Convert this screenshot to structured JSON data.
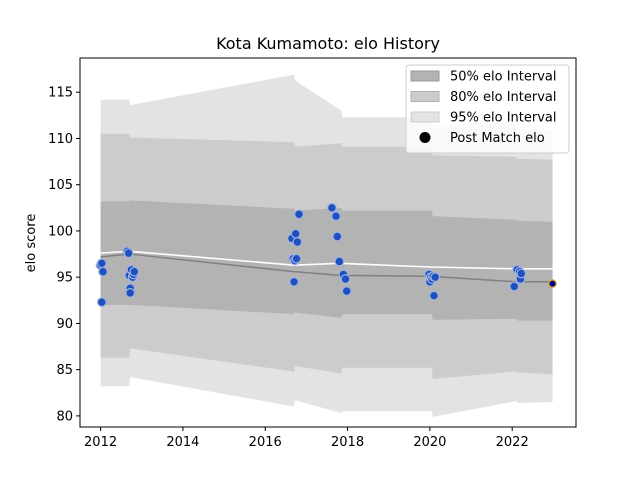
{
  "chart_data": {
    "type": "line",
    "title": "Kota Kumamoto: elo History",
    "xlabel": "",
    "ylabel": "elo score",
    "xlim": [
      2011.5,
      2023.55
    ],
    "ylim": [
      78.8,
      118.7
    ],
    "xticks": [
      2012,
      2014,
      2016,
      2018,
      2020,
      2022
    ],
    "yticks": [
      80,
      85,
      90,
      95,
      100,
      105,
      110,
      115
    ],
    "grid": false,
    "legend_position": "top-right",
    "legend": [
      {
        "label": "50% elo Interval",
        "kind": "band-50"
      },
      {
        "label": "80% elo Interval",
        "kind": "band-80"
      },
      {
        "label": "95% elo Interval",
        "kind": "band-95"
      },
      {
        "label": "Post Match elo",
        "kind": "marker"
      }
    ],
    "colors": {
      "band_50": "#b3b3b3",
      "band_80": "#cccccc",
      "band_95": "#e3e3e3",
      "mean_line": "#808080",
      "white_line": "#ffffff",
      "points": "#2050c0",
      "point_edge": "#9db3e0",
      "final_point": "#0000a0",
      "final_edge": "#d4a017"
    },
    "intervals": {
      "x": [
        2012.0,
        2012.7,
        2012.72,
        2016.7,
        2016.72,
        2017.85,
        2017.87,
        2020.05,
        2020.07,
        2022.1,
        2022.12,
        2022.98
      ],
      "upper95": [
        114.2,
        114.2,
        113.6,
        116.9,
        116.3,
        113.0,
        112.3,
        112.3,
        111.4,
        111.8,
        111.0,
        110.9
      ],
      "upper80": [
        110.5,
        110.5,
        110.1,
        109.6,
        109.1,
        109.5,
        109.1,
        109.1,
        108.2,
        108.0,
        107.8,
        107.7
      ],
      "upper50": [
        103.2,
        103.2,
        103.3,
        102.4,
        102.2,
        102.5,
        102.2,
        102.2,
        101.6,
        101.2,
        101.1,
        101.0
      ],
      "lower50": [
        92.0,
        92.0,
        92.0,
        91.0,
        91.2,
        90.6,
        91.0,
        91.0,
        90.4,
        90.5,
        90.3,
        90.3
      ],
      "lower80": [
        86.3,
        86.3,
        87.3,
        84.8,
        85.4,
        84.6,
        85.2,
        85.2,
        84.0,
        84.8,
        84.7,
        84.5
      ],
      "lower95": [
        83.2,
        83.2,
        84.2,
        81.0,
        81.7,
        80.3,
        80.5,
        80.5,
        79.9,
        81.6,
        81.4,
        81.5
      ]
    },
    "series": [
      {
        "x": [
          2012.0,
          2012.7,
          2016.7,
          2017.8,
          2020.0,
          2022.1,
          2022.98
        ],
        "y": [
          97.2,
          97.5,
          95.6,
          95.2,
          95.1,
          94.5,
          94.5
        ],
        "style": "mean-line"
      },
      {
        "x": [
          2012.0,
          2012.7,
          2016.7,
          2017.8,
          2020.0,
          2022.1,
          2022.98
        ],
        "y": [
          97.6,
          97.8,
          96.3,
          96.5,
          96.1,
          95.9,
          95.9
        ],
        "style": "white-line"
      },
      {
        "name": "Post Match elo",
        "style": "points",
        "x": [
          2012.0,
          2012.03,
          2012.06,
          2012.03,
          2012.65,
          2012.68,
          2012.7,
          2012.72,
          2012.72,
          2012.75,
          2012.78,
          2012.8,
          2012.82,
          2016.65,
          2016.68,
          2016.7,
          2016.72,
          2016.74,
          2016.76,
          2016.78,
          2016.82,
          2017.62,
          2017.72,
          2017.75,
          2017.8,
          2017.9,
          2017.95,
          2017.98,
          2019.98,
          2020.0,
          2020.02,
          2020.05,
          2020.08,
          2020.1,
          2020.13,
          2022.05,
          2022.12,
          2022.18,
          2022.2,
          2022.22
        ],
        "y": [
          96.3,
          96.5,
          95.6,
          92.3,
          97.8,
          97.6,
          95.2,
          93.8,
          93.3,
          95.8,
          95.0,
          95.3,
          95.6,
          99.2,
          97.0,
          94.5,
          96.8,
          99.7,
          97.0,
          98.8,
          101.8,
          102.5,
          101.6,
          99.4,
          96.7,
          95.3,
          94.8,
          93.5,
          95.3,
          94.5,
          95.0,
          94.8,
          95.1,
          93.0,
          95.0,
          94.0,
          95.8,
          95.6,
          94.8,
          95.4
        ]
      },
      {
        "name": "final",
        "style": "final-point",
        "x": [
          2022.98
        ],
        "y": [
          94.3
        ]
      }
    ]
  }
}
